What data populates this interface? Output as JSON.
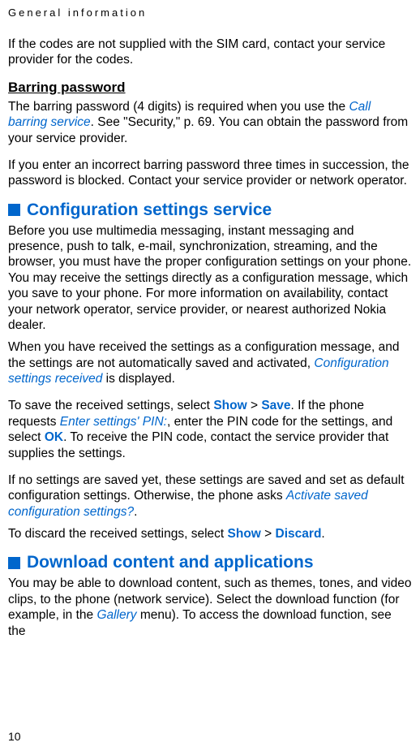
{
  "header": "General information",
  "intro_para": "If the codes are not supplied with the SIM card, contact your service provider for the codes.",
  "barring": {
    "heading": "Barring password",
    "p1_pre": "The barring password (4 digits) is required when you use the ",
    "p1_em": "Call barring service",
    "p1_post": ". See \"Security,\" p. 69. You can obtain the password from your service provider.",
    "p2": "If you enter an incorrect barring password three times in succession, the password is blocked. Contact your service provider or network operator."
  },
  "config": {
    "heading": "Configuration settings service",
    "p1": "Before you use multimedia messaging, instant messaging and presence, push to talk, e-mail, synchronization, streaming, and the browser, you must have the proper configuration settings on your phone. You may receive the settings directly as a configuration message, which you save to your phone. For more information on availability, contact your network operator, service provider, or nearest authorized Nokia dealer.",
    "p2_pre": "When you have received the settings as a configuration message, and the settings are not automatically saved and activated, ",
    "p2_em": "Configuration settings received",
    "p2_post": " is displayed.",
    "p3_pre": "To save the received settings, select ",
    "p3_show": "Show",
    "p3_gt": " > ",
    "p3_save": "Save",
    "p3_mid": ". If the phone requests ",
    "p3_em": "Enter settings' PIN:",
    "p3_mid2": ", enter the PIN code for the settings, and select ",
    "p3_ok": "OK",
    "p3_post": ". To receive the PIN code, contact the service provider that supplies the settings.",
    "p4_pre": "If no settings are saved yet, these settings are saved and set as default configuration settings. Otherwise, the phone asks ",
    "p4_em": "Activate saved configuration settings?",
    "p4_post": ".",
    "p5_pre": "To discard the received settings, select ",
    "p5_show": "Show",
    "p5_gt": " > ",
    "p5_discard": "Discard",
    "p5_post": "."
  },
  "download": {
    "heading": "Download content and applications",
    "p1_pre": "You may be able to download content, such as themes, tones, and video clips, to the phone (network service). Select the download function (for example, in the ",
    "p1_em": "Gallery",
    "p1_post": " menu). To access the download function, see the"
  },
  "page_number": "10"
}
